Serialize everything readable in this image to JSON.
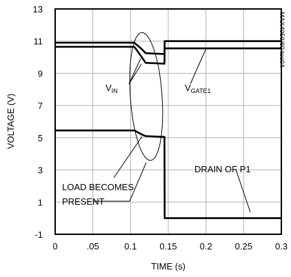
{
  "chart_data": {
    "type": "line",
    "title": "",
    "xlabel": "TIME (s)",
    "ylabel": "VOLTAGE (V)",
    "xlim": [
      0,
      0.3
    ],
    "ylim": [
      -1,
      13
    ],
    "grid": true,
    "x_ticks": [
      0,
      0.05,
      0.1,
      0.15,
      0.2,
      0.25,
      0.3
    ],
    "x_tick_labels": [
      "0",
      ".05",
      "0.1",
      "0.15",
      "0.2",
      "0.25",
      "0.3"
    ],
    "y_ticks": [
      -1,
      1,
      3,
      5,
      7,
      9,
      11,
      13
    ],
    "y_tick_labels": [
      "-1",
      "1",
      "3",
      "5",
      "7",
      "9",
      "11",
      "13"
    ],
    "series": [
      {
        "id": "vin",
        "x": [
          0,
          0.105,
          0.115,
          0.12,
          0.145,
          0.1452,
          0.3
        ],
        "y": [
          10.9,
          10.9,
          10.5,
          10.25,
          10.2,
          11.0,
          11.0
        ]
      },
      {
        "id": "vgate1",
        "x": [
          0,
          0.105,
          0.115,
          0.12,
          0.145,
          0.1452,
          0.3
        ],
        "y": [
          10.65,
          10.65,
          10.0,
          9.65,
          9.6,
          10.55,
          10.55
        ]
      },
      {
        "id": "drain_p1",
        "x": [
          0,
          0.105,
          0.115,
          0.12,
          0.145,
          0.1452,
          0.3
        ],
        "y": [
          5.45,
          5.45,
          5.2,
          5.1,
          5.05,
          0,
          0
        ]
      }
    ],
    "annotations": [
      {
        "id": "vin",
        "text": "V",
        "subscript": "IN"
      },
      {
        "id": "vgate1",
        "text": "V",
        "subscript": "GATE1"
      },
      {
        "id": "drain",
        "text": "DRAIN OF P1"
      },
      {
        "id": "load1",
        "text": "LOAD BECOMES"
      },
      {
        "id": "load2",
        "text": "PRESENT"
      },
      {
        "id": "figure_code",
        "text": "MAX4959/60 toc04"
      }
    ]
  }
}
